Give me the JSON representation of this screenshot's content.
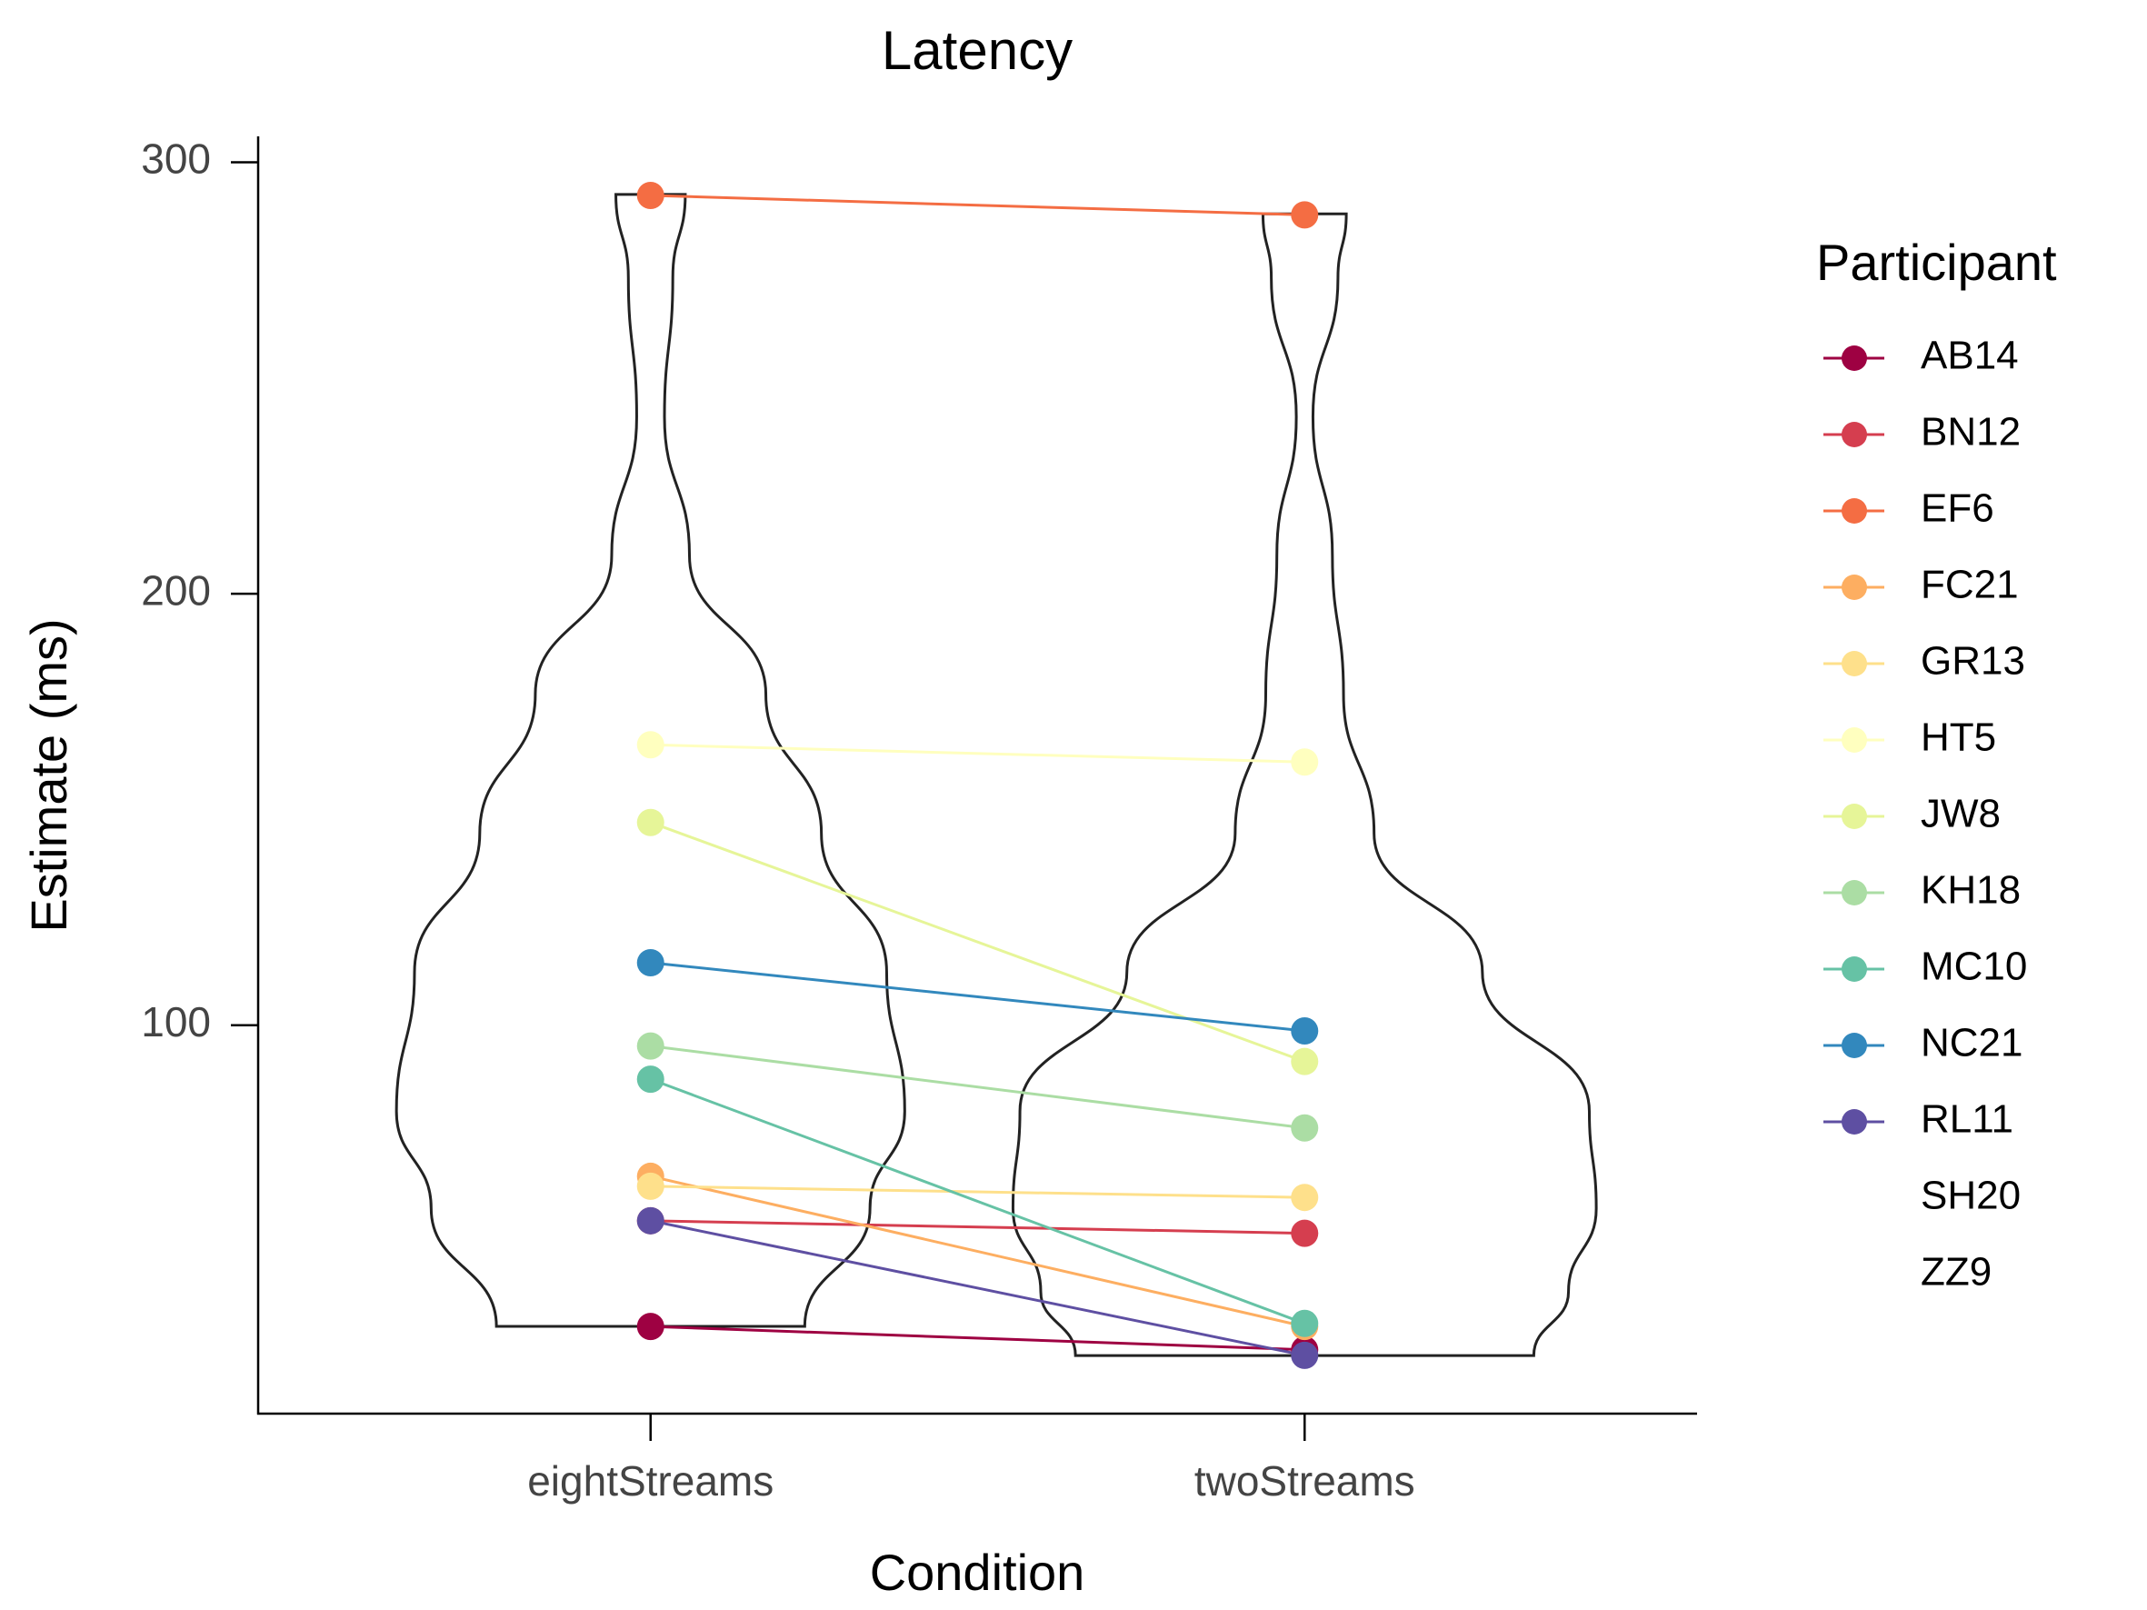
{
  "chart_data": {
    "type": "paired-violin",
    "title": "Latency",
    "x_label": "Condition",
    "y_label": "Estimate (ms)",
    "legend_title": "Participant",
    "categories": [
      "eightStreams",
      "twoStreams"
    ],
    "ylim": [
      10,
      306
    ],
    "yticks": [
      100,
      200,
      300
    ],
    "series": [
      {
        "name": "AB14",
        "color": "#9E0142",
        "values": [
          30.2,
          24.8
        ]
      },
      {
        "name": "BN12",
        "color": "#D53E4F",
        "values": [
          54.7,
          51.8
        ]
      },
      {
        "name": "EF6",
        "color": "#F46D43",
        "values": [
          292.3,
          287.8
        ]
      },
      {
        "name": "FC21",
        "color": "#FDAE61",
        "values": [
          65,
          30.2
        ]
      },
      {
        "name": "GR13",
        "color": "#FEE08B",
        "values": [
          62.7,
          60.1
        ]
      },
      {
        "name": "HT5",
        "color": "#FFFFBF",
        "values": [
          165,
          161
        ]
      },
      {
        "name": "JW8",
        "color": "#E6F598",
        "values": [
          147,
          91.6
        ]
      },
      {
        "name": "KH18",
        "color": "#ABDDA4",
        "values": [
          95.2,
          76.2
        ]
      },
      {
        "name": "MC10",
        "color": "#66C2A5",
        "values": [
          87.5,
          30.9
        ]
      },
      {
        "name": "NC21",
        "color": "#3288BD",
        "values": [
          114.5,
          98.7
        ]
      },
      {
        "name": "RL11",
        "color": "#5E4FA2",
        "values": [
          54.7,
          23.5
        ]
      },
      {
        "name": "SH20",
        "values": [
          null,
          null
        ]
      },
      {
        "name": "ZZ9",
        "values": [
          null,
          null
        ]
      }
    ]
  }
}
